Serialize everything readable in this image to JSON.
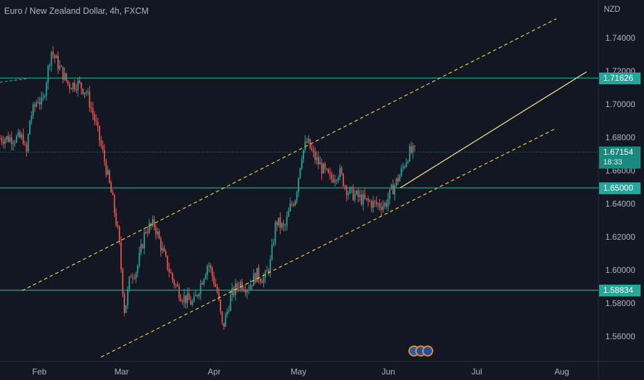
{
  "header": {
    "title": "Euro / New Zealand Dollar, 4h, FXCM",
    "currency": "NZD"
  },
  "colors": {
    "background": "#131722",
    "up": "#26a69a",
    "down": "#ef5350",
    "level_line": "#26c6b0",
    "channel": "#e6d14a",
    "projection": "#f2e38c",
    "text": "#b2b5be"
  },
  "chart_data": {
    "type": "candlestick",
    "symbol": "EURNZD",
    "title": "Euro / New Zealand Dollar, 4h, FXCM",
    "ylabel": "NZD",
    "ylim": [
      1.548,
      1.754
    ],
    "y_ticks": [
      "1.74000",
      "1.72000",
      "1.70000",
      "1.68000",
      "1.66000",
      "1.64000",
      "1.62000",
      "1.60000",
      "1.58000",
      "1.56000"
    ],
    "x_ticks": [
      "Feb",
      "Mar",
      "Apr",
      "May",
      "Jun",
      "Jul",
      "Aug"
    ],
    "price_path": [
      {
        "t": "Jan-20",
        "close": 1.68
      },
      {
        "t": "Jan-22",
        "close": 1.668
      },
      {
        "t": "Jan-25",
        "close": 1.692
      },
      {
        "t": "Jan-28",
        "close": 1.698
      },
      {
        "t": "Jan-31",
        "close": 1.704
      },
      {
        "t": "Feb-02",
        "close": 1.7
      },
      {
        "t": "Feb-05",
        "close": 1.733
      },
      {
        "t": "Feb-08",
        "close": 1.722
      },
      {
        "t": "Feb-11",
        "close": 1.712
      },
      {
        "t": "Feb-14",
        "close": 1.713
      },
      {
        "t": "Feb-17",
        "close": 1.708
      },
      {
        "t": "Feb-20",
        "close": 1.69
      },
      {
        "t": "Feb-23",
        "close": 1.668
      },
      {
        "t": "Feb-26",
        "close": 1.642
      },
      {
        "t": "Feb-28",
        "close": 1.62
      },
      {
        "t": "Mar-02",
        "close": 1.575
      },
      {
        "t": "Mar-04",
        "close": 1.598
      },
      {
        "t": "Mar-06",
        "close": 1.6
      },
      {
        "t": "Mar-09",
        "close": 1.625
      },
      {
        "t": "Mar-12",
        "close": 1.628
      },
      {
        "t": "Mar-15",
        "close": 1.61
      },
      {
        "t": "Mar-18",
        "close": 1.595
      },
      {
        "t": "Mar-21",
        "close": 1.585
      },
      {
        "t": "Mar-25",
        "close": 1.58
      },
      {
        "t": "Mar-28",
        "close": 1.595
      },
      {
        "t": "Mar-30",
        "close": 1.605
      },
      {
        "t": "Apr-02",
        "close": 1.588
      },
      {
        "t": "Apr-04",
        "close": 1.565
      },
      {
        "t": "Apr-07",
        "close": 1.585
      },
      {
        "t": "Apr-10",
        "close": 1.593
      },
      {
        "t": "Apr-13",
        "close": 1.59
      },
      {
        "t": "Apr-16",
        "close": 1.598
      },
      {
        "t": "Apr-19",
        "close": 1.595
      },
      {
        "t": "Apr-21",
        "close": 1.605
      },
      {
        "t": "Apr-23",
        "close": 1.63
      },
      {
        "t": "Apr-26",
        "close": 1.625
      },
      {
        "t": "Apr-28",
        "close": 1.638
      },
      {
        "t": "Apr-30",
        "close": 1.645
      },
      {
        "t": "May-02",
        "close": 1.67
      },
      {
        "t": "May-04",
        "close": 1.678
      },
      {
        "t": "May-06",
        "close": 1.67
      },
      {
        "t": "May-09",
        "close": 1.662
      },
      {
        "t": "May-12",
        "close": 1.655
      },
      {
        "t": "May-15",
        "close": 1.66
      },
      {
        "t": "May-18",
        "close": 1.648
      },
      {
        "t": "May-21",
        "close": 1.645
      },
      {
        "t": "May-24",
        "close": 1.642
      },
      {
        "t": "May-28",
        "close": 1.64
      },
      {
        "t": "May-31",
        "close": 1.64
      },
      {
        "t": "Jun-02",
        "close": 1.648
      },
      {
        "t": "Jun-05",
        "close": 1.658
      },
      {
        "t": "Jun-08",
        "close": 1.6715
      }
    ],
    "horizontal_levels": [
      {
        "value": 1.71626,
        "label": "1.71626"
      },
      {
        "value": 1.65,
        "label": "1.65000"
      },
      {
        "value": 1.58834,
        "label": "1.58834"
      }
    ],
    "last_price": {
      "value": 1.67154,
      "label": "1.67154",
      "countdown": "18:33"
    },
    "channel_lines": [
      {
        "name": "upper",
        "from": {
          "t": "Jan-19",
          "price": 1.588
        },
        "to": {
          "t": "Jul-30",
          "price": 1.752
        }
      },
      {
        "name": "lower",
        "from": {
          "t": "Feb-22",
          "price": 1.548
        },
        "to": {
          "t": "Jul-30",
          "price": 1.686
        }
      }
    ],
    "projection_line": {
      "from": {
        "t": "Jun-05",
        "price": 1.65
      },
      "to": {
        "t": "Aug-10",
        "price": 1.72
      }
    },
    "grid": false,
    "legend": "none"
  }
}
